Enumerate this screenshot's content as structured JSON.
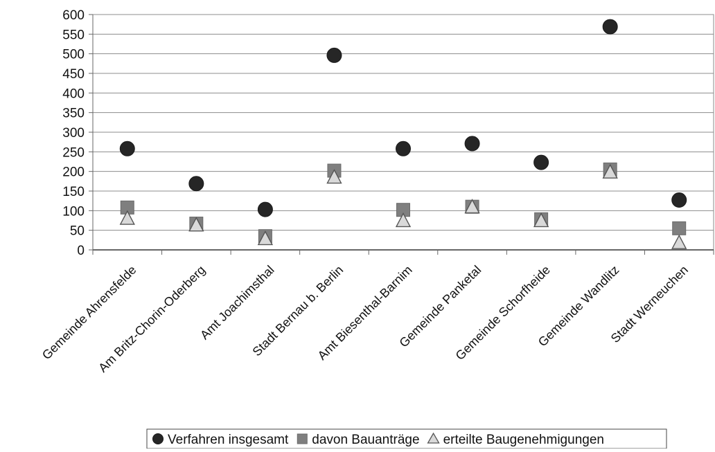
{
  "chart_data": {
    "type": "scatter",
    "title": "",
    "xlabel": "",
    "ylabel": "",
    "categories": [
      "Gemeinde Ahrensfelde",
      "Am Britz-Chorin-Oderberg",
      "Amt Joachimsthal",
      "Stadt Bernau b. Berlin",
      "Amt Biesenthal-Barnim",
      "Gemeinde Panketal",
      "Gemeinde Schorfheide",
      "Gemeinde Wandlitz",
      "Stadt Werneuchen"
    ],
    "ylim": [
      0,
      600
    ],
    "yticks": [
      "0",
      "50",
      "100",
      "150",
      "200",
      "250",
      "300",
      "350",
      "400",
      "450",
      "500",
      "550",
      "600"
    ],
    "grid": true,
    "legend_position": "bottom",
    "series": [
      {
        "name": "Verfahren insgesamt",
        "marker": "circle",
        "color": "#262626",
        "values": [
          258,
          169,
          103,
          496,
          258,
          271,
          223,
          569,
          127
        ]
      },
      {
        "name": "davon Bauanträge",
        "marker": "square",
        "color": "#7f7f7f",
        "values": [
          108,
          67,
          35,
          202,
          102,
          110,
          78,
          205,
          55
        ]
      },
      {
        "name": "erteilte Baugenehmigungen",
        "marker": "triangle",
        "color": "#d9d9d9",
        "values": [
          78,
          61,
          26,
          183,
          72,
          107,
          72,
          196,
          16
        ]
      }
    ]
  }
}
